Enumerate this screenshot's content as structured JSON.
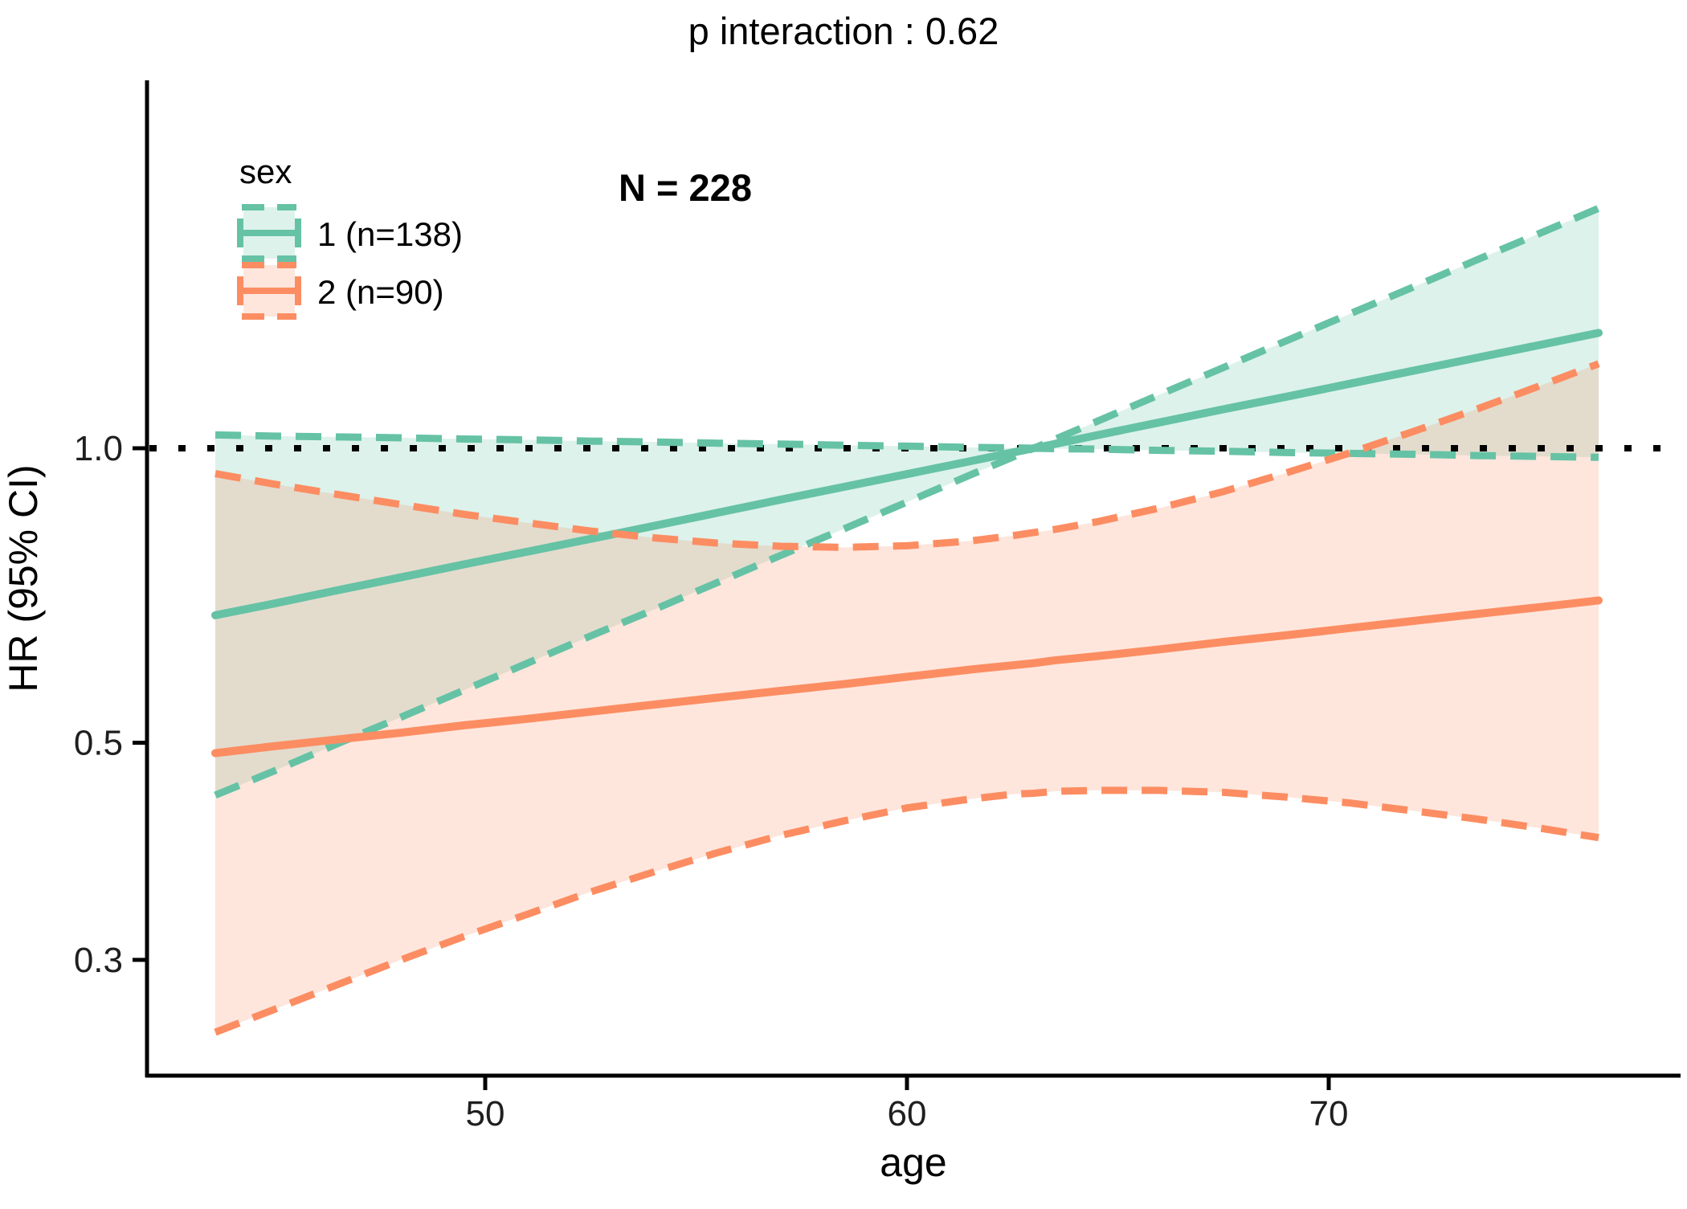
{
  "title": "p interaction : 0.62",
  "annotation": "N = 228",
  "axis": {
    "x_label": "age",
    "y_label": "HR (95% CI)",
    "x_ticks": [
      50,
      60,
      70
    ],
    "x_tick_labels": [
      "50",
      "60",
      "70"
    ],
    "y_ticks": [
      1.0,
      0.5,
      0.3
    ],
    "y_tick_labels": [
      "1.0",
      "0.5",
      "0.3"
    ]
  },
  "legend": {
    "title": "sex",
    "items": [
      {
        "label": "1 (n=138)",
        "color": "#66C2A5"
      },
      {
        "label": "2 (n=90)",
        "color": "#FC8D62"
      }
    ]
  },
  "colors": {
    "group1": "#66C2A5",
    "group2": "#FC8D62",
    "reference_line": "#000000",
    "ribbon_fill_opacity": 0.22
  },
  "chart_data": {
    "type": "line",
    "title": "p interaction : 0.62",
    "subtitle": "N = 228",
    "xlabel": "age",
    "ylabel": "HR (95% CI)",
    "y_scale": "log10",
    "xlim": [
      43.6,
      76.4
    ],
    "x_ticks": [
      50,
      60,
      70
    ],
    "y_ticks": [
      1.0,
      0.5,
      0.3
    ],
    "reference_line_y": 1.0,
    "grid": false,
    "legend_position": "top-left-inside",
    "ages": [
      43.6,
      45,
      46.5,
      48,
      49.5,
      51,
      52.5,
      54,
      55.5,
      57,
      58.5,
      60,
      61.5,
      62.5,
      63,
      63.5,
      64.5,
      66,
      67.5,
      69,
      70.5,
      72,
      73.5,
      75,
      76.4
    ],
    "series": [
      {
        "name": "1 (n=138)",
        "group": "sex = 1",
        "n": 138,
        "color": "#66C2A5",
        "linetype_fit": "solid",
        "linetype_ci": "dashed",
        "fit": [
          0.675,
          0.694,
          0.716,
          0.738,
          0.761,
          0.784,
          0.808,
          0.833,
          0.859,
          0.886,
          0.913,
          0.941,
          0.97,
          0.99,
          1.0,
          1.01,
          1.031,
          1.063,
          1.096,
          1.129,
          1.164,
          1.2,
          1.237,
          1.275,
          1.312
        ],
        "upper": [
          1.032,
          1.029,
          1.027,
          1.025,
          1.022,
          1.02,
          1.017,
          1.015,
          1.012,
          1.01,
          1.007,
          1.005,
          1.002,
          1.001,
          1.0,
          1.021,
          1.065,
          1.135,
          1.209,
          1.288,
          1.372,
          1.461,
          1.557,
          1.658,
          1.759
        ],
        "lower": [
          0.442,
          0.468,
          0.499,
          0.531,
          0.566,
          0.603,
          0.643,
          0.684,
          0.729,
          0.777,
          0.827,
          0.881,
          0.939,
          0.979,
          1.0,
          0.999,
          0.998,
          0.995,
          0.993,
          0.99,
          0.988,
          0.986,
          0.983,
          0.981,
          0.979
        ]
      },
      {
        "name": "2 (n=90)",
        "group": "sex = 2",
        "n": 90,
        "color": "#FC8D62",
        "linetype_fit": "solid",
        "linetype_ci": "dashed",
        "fit": [
          0.488,
          0.496,
          0.504,
          0.512,
          0.521,
          0.529,
          0.538,
          0.547,
          0.556,
          0.565,
          0.574,
          0.584,
          0.594,
          0.6,
          0.603,
          0.607,
          0.613,
          0.623,
          0.634,
          0.644,
          0.655,
          0.666,
          0.677,
          0.688,
          0.699
        ],
        "upper": [
          0.942,
          0.919,
          0.897,
          0.876,
          0.856,
          0.839,
          0.823,
          0.81,
          0.8,
          0.794,
          0.792,
          0.795,
          0.804,
          0.814,
          0.82,
          0.826,
          0.841,
          0.869,
          0.903,
          0.944,
          0.989,
          1.04,
          1.096,
          1.158,
          1.22
        ],
        "lower": [
          0.253,
          0.267,
          0.283,
          0.3,
          0.317,
          0.334,
          0.352,
          0.369,
          0.386,
          0.402,
          0.416,
          0.429,
          0.438,
          0.443,
          0.444,
          0.446,
          0.447,
          0.447,
          0.445,
          0.44,
          0.434,
          0.426,
          0.418,
          0.409,
          0.4
        ]
      }
    ],
    "total_n": 228,
    "p_interaction": 0.62
  }
}
